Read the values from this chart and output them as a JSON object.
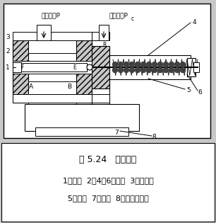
{
  "title": "图 5.24   伺服气缸",
  "caption_line1": "1－阀心  2、4、6－膜片  3－伺服阀",
  "caption_line2": "5－弹簧  7－喷嘴  8－低摩擦气缸",
  "label_top_left": "工作气压P",
  "label_top_right": "控制气压P",
  "label_top_right_sub": "c",
  "bg_color": "#c8c8c8",
  "caption_bg": "#ffffff",
  "fig_width": 3.06,
  "fig_height": 3.15,
  "dpi": 100
}
